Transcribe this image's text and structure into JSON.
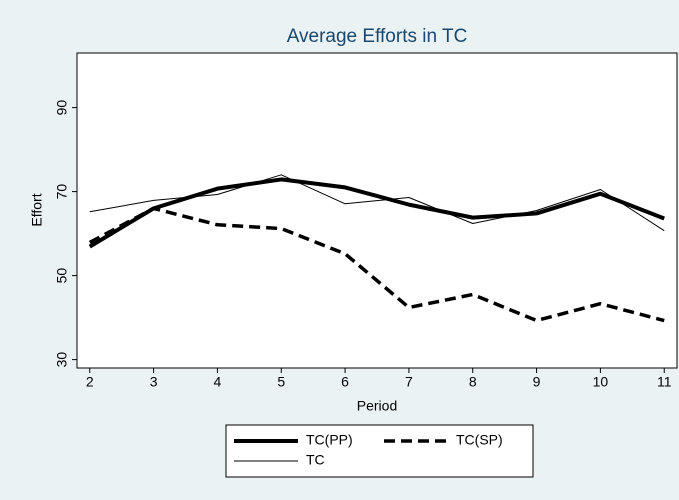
{
  "chart_data": {
    "type": "line",
    "title": "Average Efforts in TC",
    "x_label": "Period",
    "y_label": "Effort",
    "x": [
      2,
      3,
      4,
      5,
      6,
      7,
      8,
      9,
      10,
      11
    ],
    "xlim": [
      1.8,
      11.2
    ],
    "xticks": [
      2,
      3,
      4,
      5,
      6,
      7,
      8,
      9,
      10,
      11
    ],
    "ylim": [
      28,
      103
    ],
    "yticks": [
      30,
      50,
      70,
      90
    ],
    "series": [
      {
        "name": "TC(PP)",
        "color": "#000000",
        "style": "solid",
        "width": 4,
        "values": [
          56.9,
          66,
          70.7,
          72.9,
          71,
          66.9,
          63.8,
          64.8,
          69.5,
          63.6
        ]
      },
      {
        "name": "TC(SP)",
        "color": "#000000",
        "style": "dash",
        "width": 3.5,
        "values": [
          57.9,
          66,
          62.1,
          61.2,
          55.2,
          42.4,
          45.5,
          39.3,
          43.3,
          39.3
        ]
      },
      {
        "name": "TC",
        "color": "#000000",
        "style": "solid",
        "width": 1,
        "values": [
          65.2,
          67.9,
          69.3,
          74,
          67.1,
          68.6,
          62.4,
          65.5,
          70.5,
          60.7
        ]
      }
    ]
  }
}
